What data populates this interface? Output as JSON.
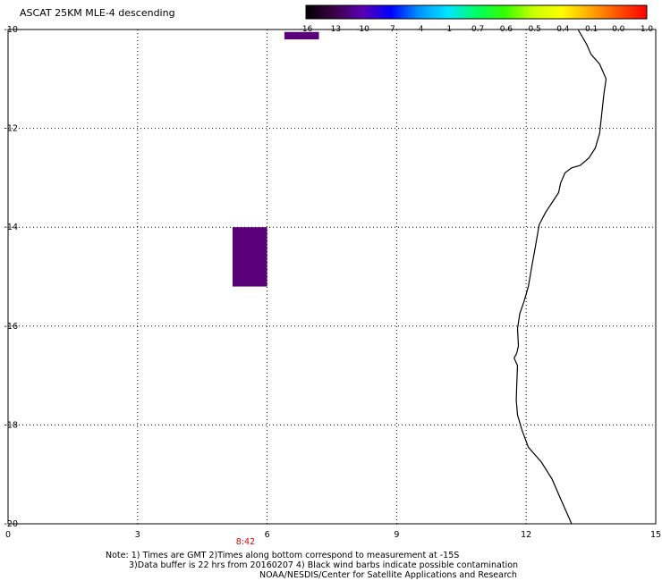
{
  "title": "ASCAT 25KM MLE-4 descending",
  "colorbar": {
    "labels": [
      "-16",
      "-13",
      "-10",
      "-7",
      "-4",
      "-1",
      "-0.7",
      "-0.6",
      "-0.5",
      "-0.4",
      "-0.1",
      "0.0",
      "1.0"
    ],
    "colors": [
      "#000000",
      "#3c0046",
      "#5a00b4",
      "#0000ff",
      "#0096ff",
      "#00e6ff",
      "#00ff64",
      "#32ff00",
      "#c8ff00",
      "#ffff00",
      "#ffaa00",
      "#ff5000",
      "#ff0000"
    ]
  },
  "axes": {
    "x_ticks": [
      "0",
      "3",
      "6",
      "9",
      "12",
      "15"
    ],
    "y_ticks": [
      "-10",
      "-12",
      "-14",
      "-16",
      "-18",
      "-20"
    ],
    "xlim": [
      0,
      15
    ],
    "ylim": [
      -20,
      -10
    ],
    "grid": true
  },
  "time_label": "8:42",
  "patches": [
    {
      "lon": [
        6.4,
        7.2
      ],
      "lat": [
        -10.2,
        -10.05
      ],
      "color": "#5a0078"
    },
    {
      "lon": [
        5.2,
        6.0
      ],
      "lat": [
        -15.2,
        -14.0
      ],
      "color": "#5a0078"
    }
  ],
  "coastline": [
    [
      13.2,
      -10.0
    ],
    [
      13.4,
      -10.3
    ],
    [
      13.5,
      -10.5
    ],
    [
      13.7,
      -10.7
    ],
    [
      13.85,
      -11.0
    ],
    [
      13.8,
      -11.3
    ],
    [
      13.75,
      -11.7
    ],
    [
      13.7,
      -12.1
    ],
    [
      13.6,
      -12.4
    ],
    [
      13.45,
      -12.6
    ],
    [
      13.25,
      -12.75
    ],
    [
      13.05,
      -12.8
    ],
    [
      12.9,
      -12.9
    ],
    [
      12.8,
      -13.1
    ],
    [
      12.75,
      -13.3
    ],
    [
      12.6,
      -13.5
    ],
    [
      12.45,
      -13.7
    ],
    [
      12.3,
      -13.95
    ],
    [
      12.25,
      -14.2
    ],
    [
      12.2,
      -14.45
    ],
    [
      12.15,
      -14.7
    ],
    [
      12.1,
      -14.95
    ],
    [
      12.05,
      -15.2
    ],
    [
      11.95,
      -15.5
    ],
    [
      11.85,
      -15.75
    ],
    [
      11.8,
      -16.05
    ],
    [
      11.82,
      -16.4
    ],
    [
      11.78,
      -16.55
    ],
    [
      11.72,
      -16.65
    ],
    [
      11.8,
      -16.8
    ],
    [
      11.78,
      -17.2
    ],
    [
      11.77,
      -17.5
    ],
    [
      11.8,
      -17.8
    ],
    [
      11.9,
      -18.1
    ],
    [
      12.05,
      -18.45
    ],
    [
      12.35,
      -18.75
    ],
    [
      12.6,
      -19.1
    ],
    [
      12.8,
      -19.5
    ],
    [
      12.95,
      -19.8
    ],
    [
      13.05,
      -20.0
    ]
  ],
  "notes": [
    "Note: 1) Times are GMT 2)Times along bottom correspond to measurement at -15S",
    "3)Data buffer is 22 hrs from 20160207 4) Black wind barbs indicate possible contamination",
    "NOAA/NESDIS/Center for Satellite Applications and Research"
  ]
}
